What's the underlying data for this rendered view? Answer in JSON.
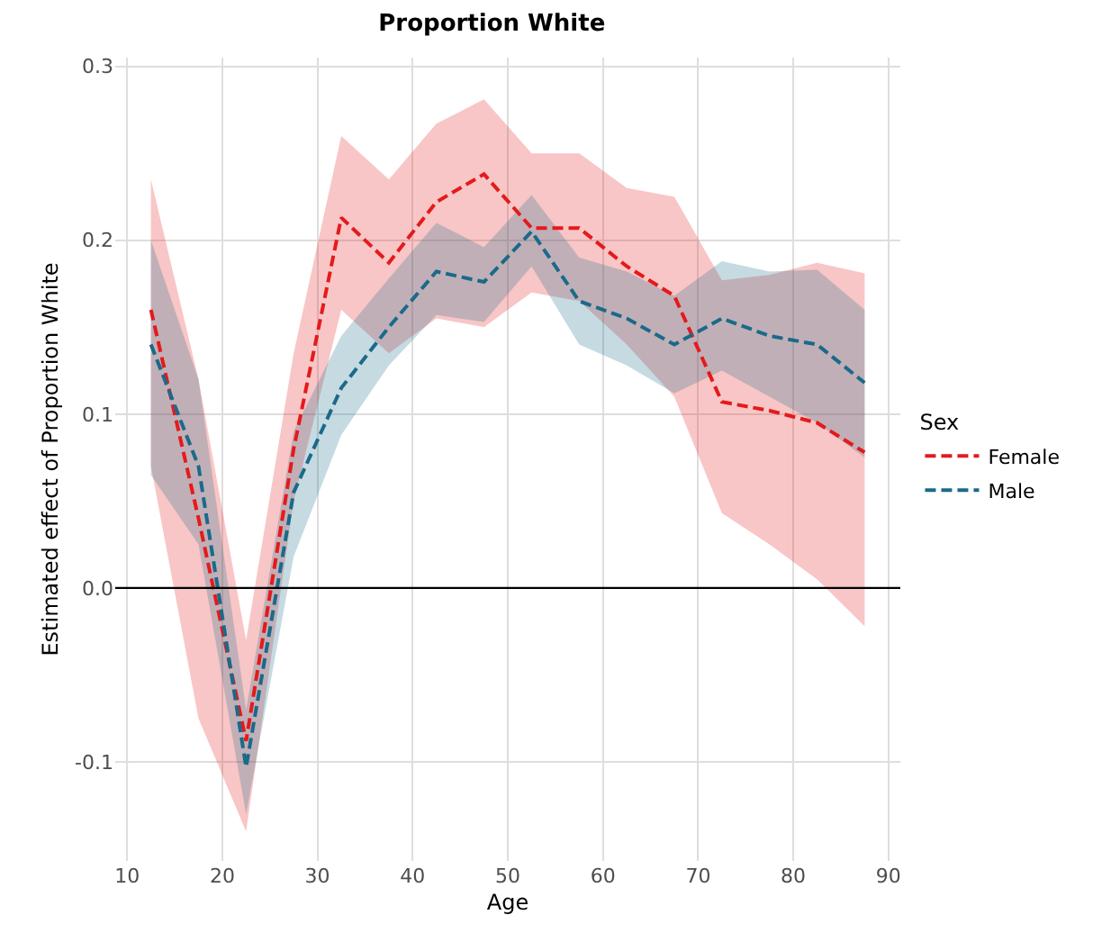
{
  "chart_data": {
    "type": "line",
    "title": "Proportion White",
    "xlabel": "Age",
    "ylabel": "Estimated effect of Proportion White",
    "legend_title": "Sex",
    "legend": "right",
    "grid": true,
    "line_style": "dashed",
    "marker": "none",
    "x": [
      12.5,
      17.5,
      22.5,
      27.5,
      32.5,
      37.5,
      42.5,
      47.5,
      52.5,
      57.5,
      62.5,
      67.5,
      72.5,
      77.5,
      82.5,
      87.5
    ],
    "xlim": [
      8.75,
      91.25
    ],
    "xticks": [
      10,
      20,
      30,
      40,
      50,
      60,
      70,
      80,
      90
    ],
    "ylim": [
      -0.157,
      0.305
    ],
    "yticks": [
      {
        "value": -0.1,
        "label": "-0.1"
      },
      {
        "value": 0,
        "label": "0.0"
      },
      {
        "value": 0.1,
        "label": "0.1"
      },
      {
        "value": 0.2,
        "label": "0.2"
      },
      {
        "value": 0.3,
        "label": "0.3"
      }
    ],
    "ref_lines": [
      {
        "axis": "y",
        "value": 0,
        "color": "#000000",
        "line_style": "solid"
      }
    ],
    "series": [
      {
        "name": "Female",
        "color": "#e41a1c",
        "values": [
          0.16,
          0.04,
          -0.088,
          0.08,
          0.213,
          0.187,
          0.222,
          0.238,
          0.207,
          0.207,
          0.185,
          0.168,
          0.107,
          0.102,
          0.095,
          0.078
        ],
        "lower": [
          0.07,
          -0.075,
          -0.14,
          0.05,
          0.16,
          0.135,
          0.155,
          0.15,
          0.17,
          0.165,
          0.14,
          0.11,
          0.043,
          0.025,
          0.005,
          -0.022
        ],
        "upper": [
          0.235,
          0.12,
          -0.03,
          0.135,
          0.26,
          0.235,
          0.267,
          0.281,
          0.25,
          0.25,
          0.23,
          0.225,
          0.177,
          0.18,
          0.187,
          0.181
        ]
      },
      {
        "name": "Male",
        "color": "#1a6a8a",
        "values": [
          0.14,
          0.07,
          -0.103,
          0.055,
          0.115,
          0.15,
          0.182,
          0.176,
          0.205,
          0.165,
          0.155,
          0.14,
          0.155,
          0.145,
          0.14,
          0.118
        ],
        "lower": [
          0.065,
          0.025,
          -0.13,
          0.018,
          0.088,
          0.128,
          0.157,
          0.153,
          0.185,
          0.14,
          0.128,
          0.112,
          0.125,
          0.11,
          0.095,
          0.075
        ],
        "upper": [
          0.2,
          0.12,
          -0.07,
          0.09,
          0.145,
          0.178,
          0.21,
          0.196,
          0.226,
          0.19,
          0.182,
          0.168,
          0.188,
          0.182,
          0.183,
          0.16
        ]
      }
    ]
  }
}
